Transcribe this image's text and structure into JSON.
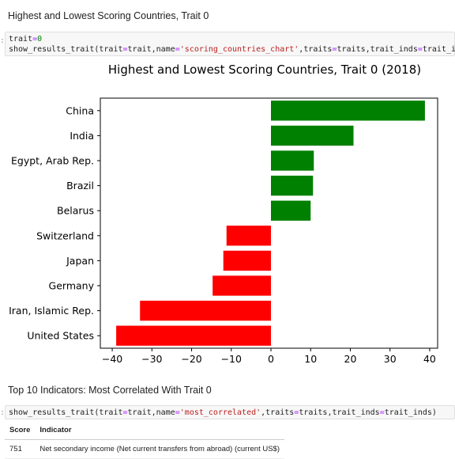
{
  "cells": {
    "heading_1": "Highest and Lowest Scoring Countries, Trait 0",
    "code_1_line1": [
      {
        "t": "trait",
        "c": ""
      },
      {
        "t": "=",
        "c": "kw-eq"
      },
      {
        "t": "0",
        "c": "kw-num"
      }
    ],
    "code_1_line2": [
      {
        "t": "show_results_trait(trait",
        "c": ""
      },
      {
        "t": "=",
        "c": "kw-eq"
      },
      {
        "t": "trait,name",
        "c": ""
      },
      {
        "t": "=",
        "c": "kw-eq"
      },
      {
        "t": "'scoring_countries_chart'",
        "c": "kw-str"
      },
      {
        "t": ",traits",
        "c": ""
      },
      {
        "t": "=",
        "c": "kw-eq"
      },
      {
        "t": "traits,trait_inds",
        "c": ""
      },
      {
        "t": "=",
        "c": "kw-eq"
      },
      {
        "t": "trait_inds)",
        "c": ""
      }
    ],
    "heading_2": "Top 10 Indicators: Most Correlated With Trait 0",
    "code_2_line1": [
      {
        "t": "show_results_trait(trait",
        "c": ""
      },
      {
        "t": "=",
        "c": "kw-eq"
      },
      {
        "t": "trait,name",
        "c": ""
      },
      {
        "t": "=",
        "c": "kw-eq"
      },
      {
        "t": "'most_correlated'",
        "c": "kw-str"
      },
      {
        "t": ",traits",
        "c": ""
      },
      {
        "t": "=",
        "c": "kw-eq"
      },
      {
        "t": "traits,trait_inds",
        "c": ""
      },
      {
        "t": "=",
        "c": "kw-eq"
      },
      {
        "t": "trait_inds)",
        "c": ""
      }
    ],
    "table": {
      "headers": [
        "Score",
        "Indicator"
      ],
      "rows": [
        [
          "751",
          "Net secondary income (Net current transfers from abroad) (current US$)"
        ]
      ]
    }
  },
  "chart_data": {
    "type": "bar",
    "orientation": "horizontal",
    "title": "Highest and Lowest Scoring Countries, Trait 0 (2018)",
    "categories": [
      "China",
      "India",
      "Egypt, Arab Rep.",
      "Brazil",
      "Belarus",
      "Switzerland",
      "Japan",
      "Germany",
      "Iran, Islamic Rep.",
      "United States"
    ],
    "values": [
      38.8,
      20.8,
      10.8,
      10.6,
      10.0,
      -11.2,
      -12.0,
      -14.7,
      -33.0,
      -39.0
    ],
    "colors": [
      "#008000",
      "#008000",
      "#008000",
      "#008000",
      "#008000",
      "#ff0000",
      "#ff0000",
      "#ff0000",
      "#ff0000",
      "#ff0000"
    ],
    "xlim": [
      -43,
      42
    ],
    "xticks": [
      -40,
      -30,
      -20,
      -10,
      0,
      10,
      20,
      30,
      40
    ],
    "xtick_labels": [
      "−40",
      "−30",
      "−20",
      "−10",
      "0",
      "10",
      "20",
      "30",
      "40"
    ],
    "grid": false
  }
}
